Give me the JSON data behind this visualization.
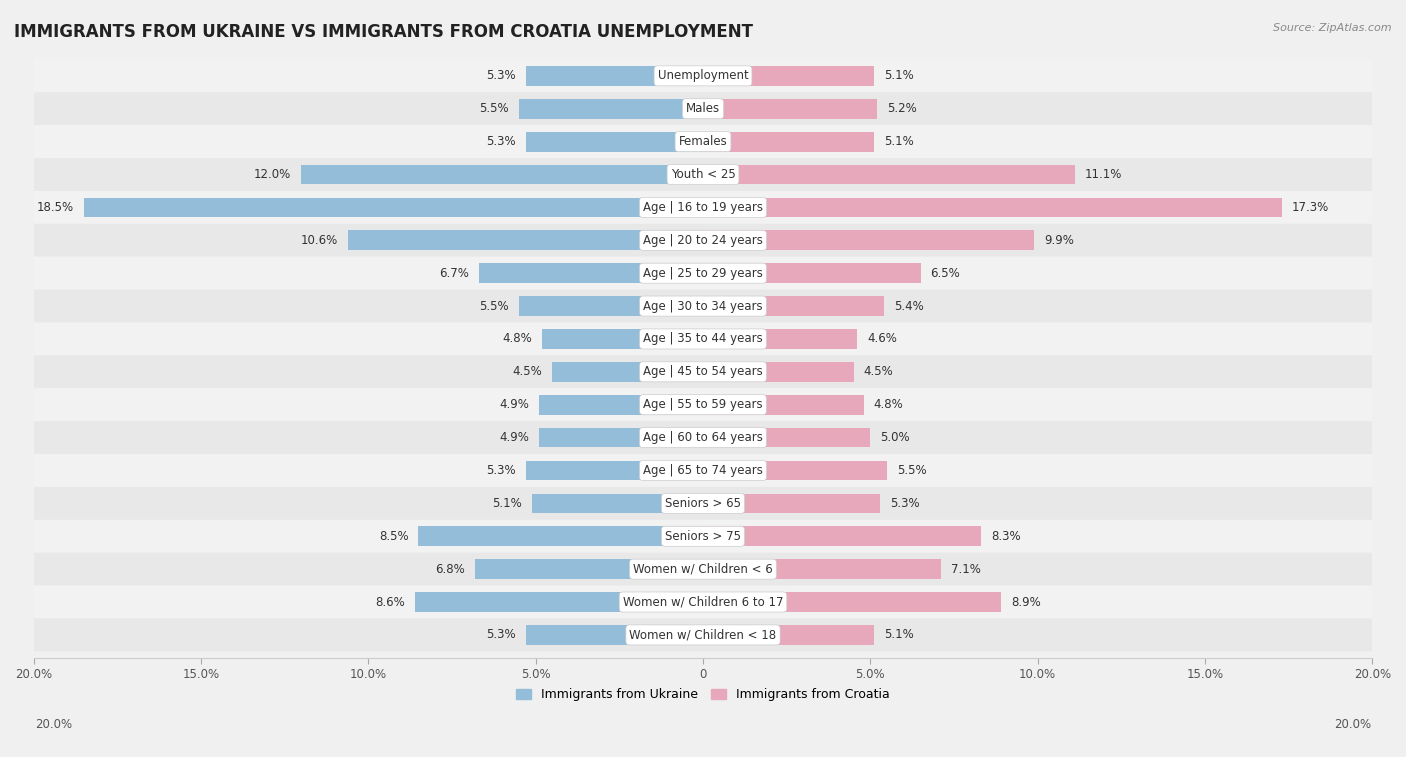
{
  "title": "IMMIGRANTS FROM UKRAINE VS IMMIGRANTS FROM CROATIA UNEMPLOYMENT",
  "source": "Source: ZipAtlas.com",
  "categories": [
    "Unemployment",
    "Males",
    "Females",
    "Youth < 25",
    "Age | 16 to 19 years",
    "Age | 20 to 24 years",
    "Age | 25 to 29 years",
    "Age | 30 to 34 years",
    "Age | 35 to 44 years",
    "Age | 45 to 54 years",
    "Age | 55 to 59 years",
    "Age | 60 to 64 years",
    "Age | 65 to 74 years",
    "Seniors > 65",
    "Seniors > 75",
    "Women w/ Children < 6",
    "Women w/ Children 6 to 17",
    "Women w/ Children < 18"
  ],
  "ukraine_values": [
    5.3,
    5.5,
    5.3,
    12.0,
    18.5,
    10.6,
    6.7,
    5.5,
    4.8,
    4.5,
    4.9,
    4.9,
    5.3,
    5.1,
    8.5,
    6.8,
    8.6,
    5.3
  ],
  "croatia_values": [
    5.1,
    5.2,
    5.1,
    11.1,
    17.3,
    9.9,
    6.5,
    5.4,
    4.6,
    4.5,
    4.8,
    5.0,
    5.5,
    5.3,
    8.3,
    7.1,
    8.9,
    5.1
  ],
  "ukraine_color": "#94bdd9",
  "croatia_color": "#e8a8bb",
  "ukraine_label": "Immigrants from Ukraine",
  "croatia_label": "Immigrants from Croatia",
  "xlim": 20.0,
  "row_colors": [
    "#f2f2f2",
    "#e8e8e8"
  ],
  "title_fontsize": 12,
  "label_fontsize": 8.5,
  "value_fontsize": 8.5
}
